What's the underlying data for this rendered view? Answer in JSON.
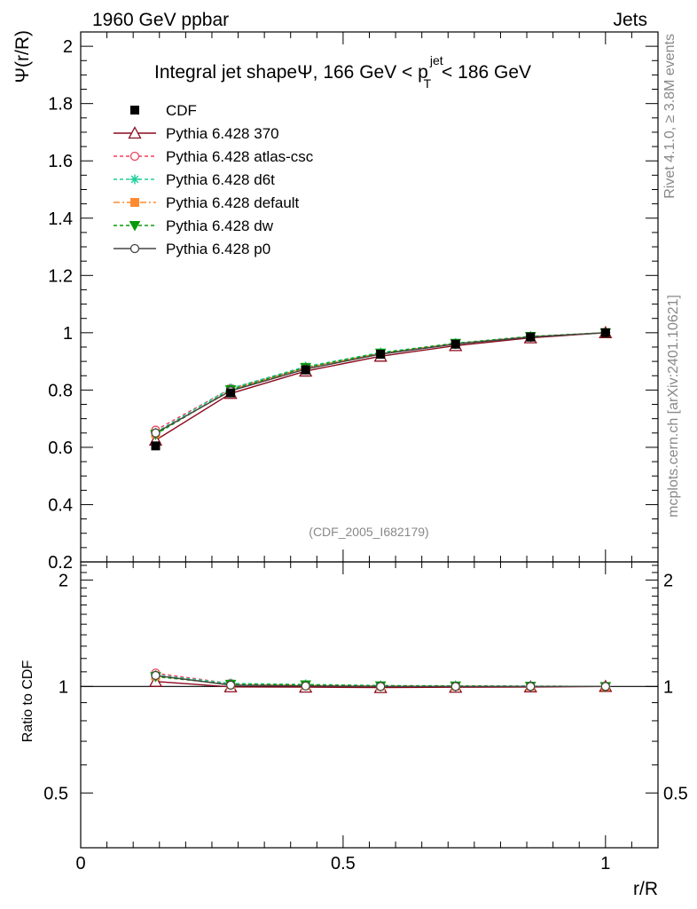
{
  "header": {
    "left": "1960 GeV ppbar",
    "right": "Jets"
  },
  "side": {
    "rivet": "Rivet 4.1.0, ≥ 3.8M events",
    "mcplots": "mcplots.cern.ch [arXiv:2401.10621]"
  },
  "chart_data": {
    "type": "line",
    "title": {
      "prefix": "Integral jet shape",
      "psi": "Ψ",
      "mid": ", 166 GeV < p",
      "sup": "jet",
      "sub": "T",
      "suffix": " < 186 GeV"
    },
    "watermark": "(CDF_2005_I682179)",
    "xlabel": "r/R",
    "ylabel": "Ψ(r/R)",
    "ratio_ylabel": "Ratio to CDF",
    "xlim": [
      0,
      1.1
    ],
    "ylim": [
      0.2,
      2.05
    ],
    "ratio_ylim": [
      0.35,
      2.25
    ],
    "x_ticks": [
      0,
      0.5,
      1
    ],
    "x_tick_labels": [
      "0",
      "0.5",
      "1"
    ],
    "y_ticks": [
      0.2,
      0.4,
      0.6,
      0.8,
      1,
      1.2,
      1.4,
      1.6,
      1.8,
      2
    ],
    "y_tick_labels": [
      "0.2",
      "0.4",
      "0.6",
      "0.8",
      "1",
      "1.2",
      "1.4",
      "1.6",
      "1.8",
      "2"
    ],
    "ratio_ticks": [
      0.5,
      1,
      2
    ],
    "ratio_tick_labels": [
      "0.5",
      "1",
      "2"
    ],
    "x": [
      0.1428,
      0.2857,
      0.4286,
      0.5714,
      0.7143,
      0.8571,
      1.0
    ],
    "data": {
      "name": "CDF",
      "values": [
        0.605,
        0.79,
        0.87,
        0.925,
        0.96,
        0.985,
        1.0
      ]
    },
    "series": [
      {
        "name": "Pythia 6.428 370",
        "color": "#8b0a1e",
        "dash": "",
        "marker": "triangle",
        "values": [
          0.625,
          0.788,
          0.866,
          0.918,
          0.955,
          0.982,
          1.0
        ]
      },
      {
        "name": "Pythia 6.428 atlas-csc",
        "color": "#f0405f",
        "dash": "4,3",
        "marker": "circle-open",
        "values": [
          0.66,
          0.805,
          0.878,
          0.928,
          0.962,
          0.986,
          1.0
        ]
      },
      {
        "name": "Pythia 6.428 d6t",
        "color": "#1fcf9a",
        "dash": "4,3",
        "marker": "star",
        "values": [
          0.652,
          0.806,
          0.882,
          0.931,
          0.964,
          0.987,
          1.0
        ]
      },
      {
        "name": "Pythia 6.428 default",
        "color": "#ff8a30",
        "dash": "7,3,2,3",
        "marker": "square",
        "values": [
          0.648,
          0.8,
          0.877,
          0.928,
          0.962,
          0.986,
          1.0
        ]
      },
      {
        "name": "Pythia 6.428 dw",
        "color": "#0a9a0a",
        "dash": "4,3",
        "marker": "triangle-down",
        "values": [
          0.645,
          0.801,
          0.879,
          0.929,
          0.963,
          0.987,
          1.0
        ]
      },
      {
        "name": "Pythia 6.428 p0",
        "color": "#444444",
        "dash": "",
        "marker": "circle-open",
        "values": [
          0.65,
          0.797,
          0.873,
          0.925,
          0.96,
          0.985,
          1.0
        ]
      }
    ]
  }
}
